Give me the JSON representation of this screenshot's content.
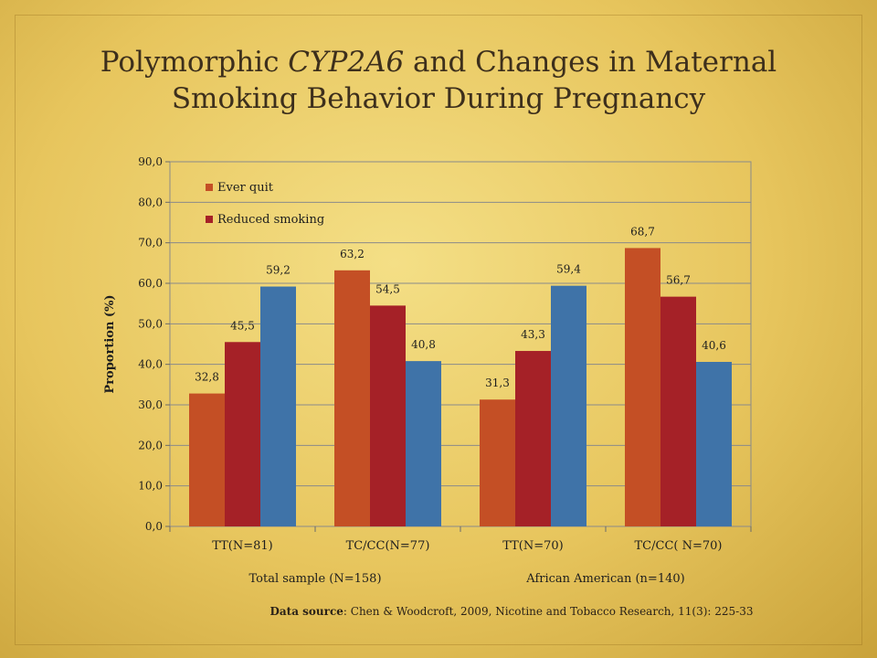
{
  "title": {
    "line1_before": "Polymorphic ",
    "line1_italic": "CYP2A6",
    "line1_after": " and Changes in Maternal",
    "line2": "Smoking Behavior During Pregnancy"
  },
  "source": {
    "label": "Data source",
    "text": ": Chen & Woodcroft, 2009, Nicotine and Tobacco Research, 11(3): 225-33"
  },
  "colors": {
    "ever_quit": "#c44f25",
    "reduced_smoking": "#a52127",
    "third_series": "#3f73a8"
  },
  "chart_data": {
    "type": "bar",
    "categories": [
      "TT(N=81)",
      "TC/CC(N=77)",
      "TT(N=70)",
      "TC/CC( N=70)"
    ],
    "groups": [
      {
        "label": "Total sample  (N=158)",
        "categories": [
          0,
          1
        ]
      },
      {
        "label": "African American (n=140)",
        "categories": [
          2,
          3
        ]
      }
    ],
    "series": [
      {
        "name": "Ever quit",
        "values": [
          32.8,
          63.2,
          31.3,
          68.7
        ],
        "labels": [
          "32,8",
          "63,2",
          "31,3",
          "68,7"
        ]
      },
      {
        "name": "Reduced smoking",
        "values": [
          45.5,
          54.5,
          43.3,
          56.7
        ],
        "labels": [
          "45,5",
          "54,5",
          "43,3",
          "56,7"
        ]
      },
      {
        "values": [
          59.2,
          40.8,
          59.4,
          40.6
        ],
        "labels": [
          "59,2",
          "40,8",
          "59,4",
          "40,6"
        ]
      }
    ],
    "ylabel": "Proportion (%)",
    "ylim": [
      0,
      90
    ],
    "yticks": [
      "0,0",
      "10,0",
      "20,0",
      "30,0",
      "40,0",
      "50,0",
      "60,0",
      "70,0",
      "80,0",
      "90,0"
    ],
    "grid": true,
    "legend": "top-left"
  }
}
